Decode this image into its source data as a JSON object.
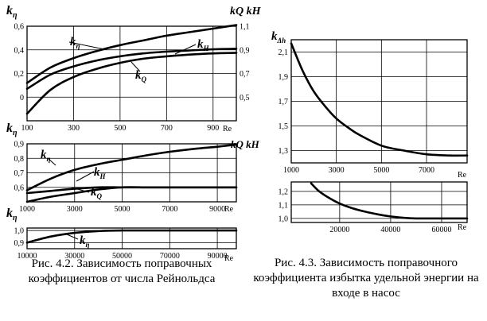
{
  "chart_data": [
    {
      "type": "line",
      "id": "fig42_top",
      "xlim": [
        100,
        1000
      ],
      "ylim": [
        -0.2,
        0.6
      ],
      "x_ticks": [
        {
          "v": 100,
          "label": "100"
        },
        {
          "v": 300,
          "label": "300"
        },
        {
          "v": 500,
          "label": "500"
        },
        {
          "v": 700,
          "label": "700"
        },
        {
          "v": 900,
          "label": "900"
        }
      ],
      "x_unit": "Re",
      "y_ticks": [
        {
          "v": 0.6,
          "label": "0,6"
        },
        {
          "v": 0.4,
          "label": "0,4"
        },
        {
          "v": 0.2,
          "label": "0,2"
        },
        {
          "v": 0.0,
          "label": "0"
        }
      ],
      "y_ticks_right": [
        {
          "v": 0.6,
          "label": "1,1"
        },
        {
          "v": 0.4,
          "label": "0,9"
        },
        {
          "v": 0.2,
          "label": "0,7"
        },
        {
          "v": 0.0,
          "label": "0,5"
        }
      ],
      "y_label_left": "k",
      "y_label_left_sub": "η",
      "y_label_right": "kQ kH",
      "grid": true,
      "series": [
        {
          "name": "kη",
          "x": [
            100,
            200,
            300,
            400,
            500,
            600,
            700,
            800,
            900,
            1000
          ],
          "y": [
            0.12,
            0.25,
            0.33,
            0.39,
            0.44,
            0.48,
            0.52,
            0.55,
            0.58,
            0.61
          ]
        },
        {
          "name": "kH",
          "x": [
            100,
            200,
            300,
            400,
            500,
            600,
            700,
            800,
            900,
            1000
          ],
          "y": [
            0.07,
            0.19,
            0.26,
            0.31,
            0.345,
            0.37,
            0.385,
            0.395,
            0.405,
            0.41
          ]
        },
        {
          "name": "kQ",
          "x": [
            100,
            200,
            300,
            400,
            500,
            600,
            700,
            800,
            900,
            1000
          ],
          "y": [
            -0.14,
            0.06,
            0.17,
            0.24,
            0.29,
            0.325,
            0.345,
            0.36,
            0.37,
            0.375
          ]
        }
      ],
      "labels": [
        {
          "series": "kη",
          "text": "k",
          "sub": "η"
        },
        {
          "series": "kH",
          "text": "k",
          "sub": "H"
        },
        {
          "series": "kQ",
          "text": "k",
          "sub": "Q"
        }
      ]
    },
    {
      "type": "line",
      "id": "fig42_mid",
      "xlim": [
        1000,
        9800
      ],
      "ylim": [
        0.5,
        0.9
      ],
      "x_ticks": [
        {
          "v": 1000,
          "label": "1000"
        },
        {
          "v": 3000,
          "label": "3000"
        },
        {
          "v": 5000,
          "label": "5000"
        },
        {
          "v": 7000,
          "label": "7000"
        },
        {
          "v": 9000,
          "label": "9000"
        }
      ],
      "x_unit": "Re",
      "y_ticks": [
        {
          "v": 0.9,
          "label": "0,9"
        },
        {
          "v": 0.8,
          "label": "0,8"
        },
        {
          "v": 0.7,
          "label": "0,7"
        },
        {
          "v": 0.6,
          "label": "0,6"
        }
      ],
      "y_label_left": "k",
      "y_label_left_sub": "η",
      "y_label_right": "kQ kH",
      "grid": true,
      "series": [
        {
          "name": "kη",
          "x": [
            1000,
            2000,
            3000,
            4000,
            5000,
            6000,
            7000,
            8000,
            9000,
            9800
          ],
          "y": [
            0.58,
            0.66,
            0.72,
            0.76,
            0.79,
            0.82,
            0.845,
            0.865,
            0.88,
            0.895
          ]
        },
        {
          "name": "kH",
          "x": [
            1000,
            2000,
            3000,
            4000,
            5000,
            6000,
            7000,
            8000,
            9000,
            9800
          ],
          "y": [
            0.56,
            0.575,
            0.59,
            0.6,
            0.6,
            0.6,
            0.6,
            0.6,
            0.6,
            0.6
          ]
        },
        {
          "name": "kQ",
          "x": [
            1000,
            2000,
            3000,
            4000,
            5000,
            6000,
            7000,
            8000,
            9000,
            9800
          ],
          "y": [
            0.5,
            0.535,
            0.56,
            0.585,
            0.6,
            0.6,
            0.6,
            0.6,
            0.6,
            0.6
          ]
        }
      ],
      "labels": [
        {
          "series": "kη",
          "text": "k",
          "sub": "η"
        },
        {
          "series": "kH",
          "text": "k",
          "sub": "H"
        },
        {
          "series": "kQ",
          "text": "k",
          "sub": "Q"
        }
      ]
    },
    {
      "type": "line",
      "id": "fig42_bot",
      "xlim": [
        10000,
        98000
      ],
      "ylim": [
        0.85,
        1.02
      ],
      "x_ticks": [
        {
          "v": 10000,
          "label": "10000"
        },
        {
          "v": 30000,
          "label": "30000"
        },
        {
          "v": 50000,
          "label": "50000"
        },
        {
          "v": 70000,
          "label": "70000"
        },
        {
          "v": 90000,
          "label": "90000"
        }
      ],
      "x_unit": "Re",
      "y_ticks": [
        {
          "v": 1.0,
          "label": "1,0"
        },
        {
          "v": 0.9,
          "label": "0,9"
        }
      ],
      "y_label_left": "k",
      "y_label_left_sub": "η",
      "grid": true,
      "series": [
        {
          "name": "kη",
          "x": [
            10000,
            20000,
            30000,
            40000,
            50000,
            60000,
            70000,
            80000,
            90000,
            98000
          ],
          "y": [
            0.9,
            0.95,
            0.98,
            0.995,
            1.0,
            1.0,
            1.0,
            1.0,
            1.0,
            1.0
          ]
        }
      ],
      "labels": [
        {
          "series": "kη",
          "text": "k",
          "sub": "η"
        }
      ]
    },
    {
      "type": "line",
      "id": "fig43_top",
      "xlim": [
        1000,
        8800
      ],
      "ylim": [
        1.2,
        2.2
      ],
      "x_ticks": [
        {
          "v": 1000,
          "label": "1000"
        },
        {
          "v": 3000,
          "label": "3000"
        },
        {
          "v": 5000,
          "label": "5000"
        },
        {
          "v": 7000,
          "label": "7000"
        }
      ],
      "x_unit": "Re",
      "y_ticks": [
        {
          "v": 2.1,
          "label": "2,1"
        },
        {
          "v": 1.9,
          "label": "1,9"
        },
        {
          "v": 1.7,
          "label": "1,7"
        },
        {
          "v": 1.5,
          "label": "1,5"
        },
        {
          "v": 1.3,
          "label": "1,3"
        }
      ],
      "y_label_left": "k",
      "y_label_left_sub": "Δh",
      "grid": true,
      "series": [
        {
          "name": "kΔh",
          "x": [
            1000,
            1500,
            2000,
            2500,
            3000,
            3500,
            4000,
            5000,
            6000,
            7000,
            8000,
            8800
          ],
          "y": [
            2.17,
            1.95,
            1.78,
            1.66,
            1.56,
            1.49,
            1.43,
            1.34,
            1.3,
            1.27,
            1.26,
            1.26
          ]
        }
      ]
    },
    {
      "type": "line",
      "id": "fig43_bot",
      "xlim": [
        1000,
        70000
      ],
      "ylim": [
        0.97,
        1.27
      ],
      "x_ticks": [
        {
          "v": 20000,
          "label": "20000"
        },
        {
          "v": 40000,
          "label": "40000"
        },
        {
          "v": 60000,
          "label": "60000"
        }
      ],
      "x_unit": "Re",
      "y_ticks": [
        {
          "v": 1.2,
          "label": "1,2"
        },
        {
          "v": 1.1,
          "label": "1,1"
        },
        {
          "v": 1.0,
          "label": "1,0"
        }
      ],
      "grid": true,
      "series": [
        {
          "name": "kΔh",
          "x": [
            8800,
            12000,
            16000,
            20000,
            25000,
            30000,
            35000,
            40000,
            45000,
            50000,
            55000,
            60000,
            65000,
            70000
          ],
          "y": [
            1.26,
            1.2,
            1.15,
            1.11,
            1.075,
            1.05,
            1.03,
            1.015,
            1.005,
            1.0,
            1.0,
            1.0,
            1.0,
            1.0
          ]
        }
      ]
    }
  ],
  "captions": {
    "fig42": "Рис. 4.2. Зависимость поправочных коэффициентов от числа Рейнольдса",
    "fig43": "Рис. 4.3. Зависимость поправочного коэффициента избытка удельной энергии на входе в насос"
  }
}
